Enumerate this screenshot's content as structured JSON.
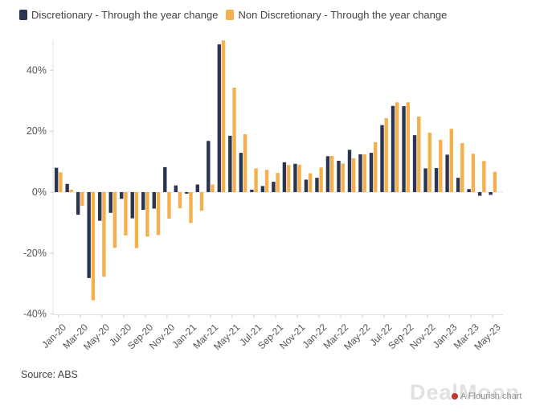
{
  "chart_data": {
    "type": "bar",
    "title": "",
    "xlabel": "",
    "ylabel": "",
    "ylim": [
      -40,
      50
    ],
    "y_ticks": [
      -40,
      -20,
      0,
      20,
      40
    ],
    "y_tick_labels": [
      "-40%",
      "-20%",
      "0%",
      "20%",
      "40%"
    ],
    "categories": [
      "Jan-20",
      "Feb-20",
      "Mar-20",
      "Apr-20",
      "May-20",
      "Jun-20",
      "Jul-20",
      "Aug-20",
      "Sep-20",
      "Oct-20",
      "Nov-20",
      "Dec-20",
      "Jan-21",
      "Feb-21",
      "Mar-21",
      "Apr-21",
      "May-21",
      "Jun-21",
      "Jul-21",
      "Aug-21",
      "Sep-21",
      "Oct-21",
      "Nov-21",
      "Dec-21",
      "Jan-22",
      "Feb-22",
      "Mar-22",
      "Apr-22",
      "May-22",
      "Jun-22",
      "Jul-22",
      "Aug-22",
      "Sep-22",
      "Oct-22",
      "Nov-22",
      "Dec-22",
      "Jan-23",
      "Feb-23",
      "Mar-23",
      "Apr-23",
      "May-23"
    ],
    "x_tick_labels": [
      "Jan-20",
      "Mar-20",
      "May-20",
      "Jul-20",
      "Sep-20",
      "Nov-20",
      "Jan-21",
      "Mar-21",
      "May-21",
      "Jul-21",
      "Sep-21",
      "Nov-21",
      "Jan-22",
      "Mar-22",
      "May-22",
      "Jul-22",
      "Sep-22",
      "Nov-22",
      "Jan-23",
      "Mar-23",
      "May-23"
    ],
    "series": [
      {
        "name": "Discretionary - Through the year change",
        "color": "#2b3451",
        "values": [
          8.0,
          2.7,
          -7.4,
          -28.2,
          -9.4,
          -6.8,
          -2.2,
          -8.6,
          -5.8,
          -5.4,
          8.2,
          2.2,
          -0.5,
          2.5,
          16.8,
          48.5,
          18.5,
          12.9,
          0.8,
          2.0,
          3.4,
          9.8,
          9.3,
          4.1,
          4.7,
          11.8,
          10.3,
          13.9,
          12.4,
          12.9,
          22.0,
          28.3,
          28.2,
          18.7,
          7.8,
          7.9,
          12.3,
          4.7,
          1.0,
          -1.2,
          -0.9
        ]
      },
      {
        "name": "Non Discretionary - Through the year change",
        "color": "#f5b04e",
        "values": [
          6.5,
          0.8,
          -4.5,
          -35.5,
          -27.8,
          -18.3,
          -14.2,
          -18.4,
          -14.6,
          -14.1,
          -8.7,
          -5.3,
          -10.1,
          -6.1,
          2.5,
          49.8,
          34.3,
          19.0,
          7.8,
          7.3,
          6.3,
          8.9,
          9.0,
          6.2,
          8.1,
          11.9,
          9.4,
          11.1,
          12.4,
          16.4,
          24.3,
          29.5,
          29.5,
          24.8,
          19.5,
          17.2,
          20.8,
          16.1,
          12.6,
          10.2,
          6.7
        ]
      }
    ],
    "legend": "top-left",
    "grid": false
  },
  "footer": {
    "source": "Source: ABS",
    "watermark": "DealMoon",
    "brand": "A Flourish chart"
  }
}
